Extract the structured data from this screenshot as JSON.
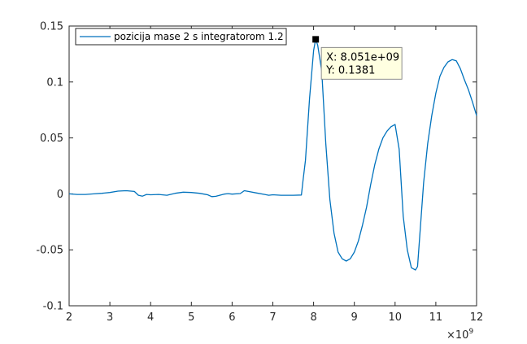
{
  "chart_data": {
    "type": "line",
    "title": "",
    "xlabel": "",
    "ylabel": "",
    "x_exponent_label": "×10",
    "x_exponent_power": "9",
    "xlim": [
      2,
      12
    ],
    "ylim": [
      -0.1,
      0.15
    ],
    "x_ticks": [
      2,
      3,
      4,
      5,
      6,
      7,
      8,
      9,
      10,
      11,
      12
    ],
    "x_tick_labels": [
      "2",
      "3",
      "4",
      "5",
      "6",
      "7",
      "8",
      "9",
      "10",
      "11",
      "12"
    ],
    "y_ticks": [
      -0.1,
      -0.05,
      0,
      0.05,
      0.1,
      0.15
    ],
    "y_tick_labels": [
      "-0.1",
      "-0.05",
      "0",
      "0.05",
      "0.1",
      "0.15"
    ],
    "grid": false,
    "legend_placement": "top-left",
    "series": [
      {
        "name": "pozicija mase 2 s integratorom 1.2",
        "color": "#0072BD",
        "x": [
          2.0,
          2.2,
          2.4,
          2.6,
          2.8,
          3.0,
          3.2,
          3.4,
          3.6,
          3.7,
          3.8,
          3.9,
          4.0,
          4.2,
          4.4,
          4.6,
          4.8,
          5.0,
          5.2,
          5.4,
          5.5,
          5.6,
          5.8,
          5.9,
          6.0,
          6.2,
          6.3,
          6.4,
          6.6,
          6.8,
          6.9,
          7.0,
          7.2,
          7.4,
          7.5,
          7.7,
          7.74,
          7.8,
          7.9,
          8.0,
          8.05,
          8.1,
          8.2,
          8.3,
          8.4,
          8.5,
          8.6,
          8.7,
          8.8,
          8.9,
          9.0,
          9.1,
          9.2,
          9.3,
          9.4,
          9.5,
          9.6,
          9.7,
          9.8,
          9.9,
          10.0,
          10.1,
          10.2,
          10.3,
          10.4,
          10.5,
          10.55,
          10.6,
          10.7,
          10.8,
          10.9,
          11.0,
          11.1,
          11.2,
          11.3,
          11.4,
          11.5,
          11.6,
          11.7,
          11.8,
          11.9,
          12.0
        ],
        "y": [
          0.0,
          -0.0005,
          -0.0005,
          0.0,
          0.0005,
          0.0012,
          0.0025,
          0.0028,
          0.0022,
          -0.0012,
          -0.002,
          -0.0005,
          -0.0008,
          -0.0005,
          -0.0012,
          0.0005,
          0.0015,
          0.0012,
          0.0005,
          -0.0008,
          -0.0025,
          -0.0022,
          -0.0002,
          0.0002,
          -0.0002,
          0.0003,
          0.0028,
          0.0022,
          0.0008,
          -0.0005,
          -0.0012,
          -0.0008,
          -0.0012,
          -0.0012,
          -0.0012,
          -0.001,
          0.012,
          0.03,
          0.085,
          0.128,
          0.1381,
          0.133,
          0.11,
          0.045,
          -0.005,
          -0.035,
          -0.052,
          -0.058,
          -0.06,
          -0.058,
          -0.052,
          -0.042,
          -0.028,
          -0.012,
          0.008,
          0.026,
          0.04,
          0.05,
          0.056,
          0.06,
          0.062,
          0.04,
          -0.02,
          -0.05,
          -0.066,
          -0.068,
          -0.065,
          -0.04,
          0.01,
          0.045,
          0.07,
          0.09,
          0.105,
          0.113,
          0.118,
          0.12,
          0.119,
          0.112,
          0.102,
          0.093,
          0.082,
          0.07
        ]
      }
    ],
    "datatip": {
      "x_value": 8.051,
      "y_value": 0.1381,
      "x_text": "X: 8.051e+09",
      "y_text": "Y: 0.1381"
    }
  }
}
